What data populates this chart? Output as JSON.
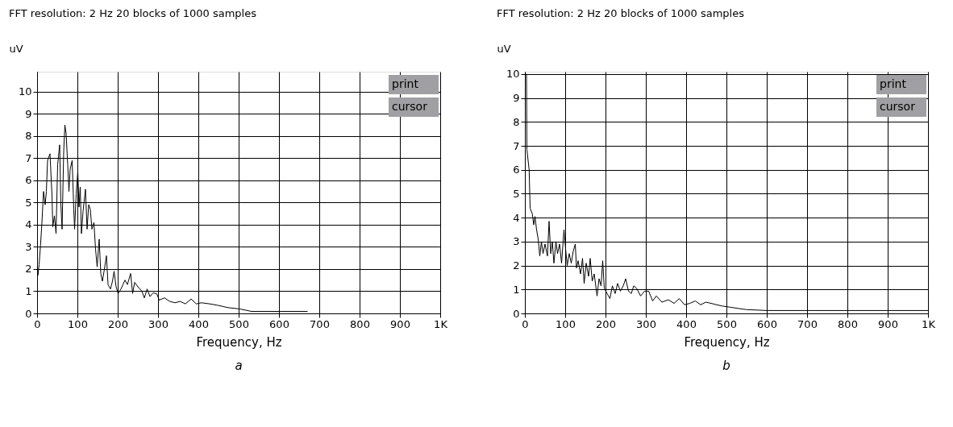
{
  "chart_data": [
    {
      "type": "line",
      "title": "FFT resolution: 2 Hz   20 blocks of 1000 samples",
      "xlabel": "Frequency, Hz",
      "ylabel": "uV",
      "annotations": [
        "print",
        "cursor",
        "a"
      ],
      "series": [
        {
          "color": "#000000",
          "x": [
            0,
            2,
            5,
            8.5,
            12,
            16,
            20,
            23,
            26,
            32,
            37,
            39,
            43,
            47,
            51,
            56,
            59,
            62,
            66,
            69,
            72,
            76,
            79,
            82,
            87,
            91,
            93,
            97,
            101,
            104,
            107,
            110,
            114,
            120,
            124,
            128,
            132,
            136,
            141,
            145,
            149,
            154,
            158,
            162,
            167,
            172,
            176,
            182,
            187,
            191,
            196,
            201,
            208,
            213,
            218,
            224,
            232,
            237,
            242,
            250,
            260,
            266,
            273,
            280,
            288,
            297,
            303,
            316,
            329,
            342,
            355,
            368,
            382,
            395,
            408,
            428,
            447,
            474,
            503,
            532,
            600,
            671
          ],
          "values": [
            2.56,
            1.72,
            2.2,
            3.07,
            4.1,
            5.5,
            4.9,
            5.5,
            6.9,
            7.2,
            5.3,
            3.9,
            4.4,
            3.6,
            6.7,
            7.6,
            4.9,
            3.8,
            7.3,
            8.5,
            8.1,
            6.7,
            5.5,
            6.5,
            6.9,
            4.7,
            3.8,
            5.4,
            6.4,
            4.8,
            5.7,
            3.6,
            4.6,
            5.6,
            3.8,
            4.9,
            4.7,
            3.8,
            4.1,
            2.9,
            2.1,
            3.35,
            1.8,
            1.45,
            2.0,
            2.6,
            1.3,
            1.1,
            1.45,
            1.9,
            1.2,
            0.9,
            1.1,
            1.3,
            1.5,
            1.3,
            1.8,
            0.9,
            1.4,
            1.2,
            1.0,
            0.7,
            1.1,
            0.76,
            0.93,
            0.88,
            0.6,
            0.7,
            0.54,
            0.48,
            0.54,
            0.43,
            0.65,
            0.43,
            0.48,
            0.43,
            0.37,
            0.26,
            0.2,
            0.09,
            0.09,
            0.09
          ]
        }
      ],
      "xlim": [
        0,
        1000
      ],
      "xticks": [
        0,
        100,
        200,
        300,
        400,
        500,
        600,
        700,
        800,
        900,
        {
          "value": 1000,
          "label": "1K"
        }
      ],
      "ylim": [
        0,
        10.9
      ],
      "yticks": [
        0,
        1,
        2,
        3,
        4,
        5,
        6,
        7,
        8,
        9,
        10
      ],
      "grid": true,
      "line_style": "solid"
    },
    {
      "type": "line",
      "title": "FFT resolution: 2 Hz   20 blocks of 1000 samples",
      "xlabel": "Frequency, Hz",
      "ylabel": "uV",
      "annotations": [
        "print",
        "cursor",
        "b"
      ],
      "series": [
        {
          "color": "#000000",
          "x": [
            1.3,
            4,
            5,
            10.6,
            13,
            18.5,
            22,
            25,
            29,
            33,
            37,
            41,
            45,
            50,
            56,
            60,
            64,
            68,
            72,
            77,
            81,
            86,
            91,
            97,
            101,
            105,
            110,
            115,
            120,
            125,
            128,
            132,
            138,
            143,
            147,
            152,
            158,
            162,
            167,
            172,
            179,
            184,
            189,
            193,
            197,
            204,
            211,
            217,
            224,
            230,
            237,
            244,
            250,
            257,
            264,
            270,
            277,
            287,
            297,
            307,
            317,
            326,
            340,
            356,
            370,
            383,
            396,
            409,
            423,
            436,
            449,
            462,
            476,
            489,
            509,
            528,
            549,
            600,
            700,
            800,
            900,
            1000
          ],
          "values": [
            10,
            10,
            6.85,
            6.0,
            4.4,
            4.15,
            3.7,
            4.05,
            3.5,
            3.1,
            2.4,
            3.0,
            2.5,
            2.9,
            2.4,
            3.85,
            2.5,
            3.0,
            2.1,
            3.0,
            2.5,
            2.9,
            2.1,
            3.5,
            2.7,
            2.0,
            2.5,
            2.1,
            2.6,
            2.9,
            1.9,
            2.2,
            1.65,
            2.3,
            1.25,
            2.1,
            1.55,
            2.3,
            1.35,
            1.65,
            0.73,
            1.45,
            1.15,
            2.2,
            1.05,
            0.83,
            0.62,
            1.15,
            0.83,
            1.25,
            0.93,
            1.15,
            1.45,
            0.93,
            0.83,
            1.15,
            1.05,
            0.73,
            0.93,
            0.93,
            0.52,
            0.73,
            0.47,
            0.57,
            0.42,
            0.62,
            0.36,
            0.42,
            0.52,
            0.36,
            0.47,
            0.42,
            0.36,
            0.31,
            0.26,
            0.21,
            0.16,
            0.12,
            0.12,
            0.12,
            0.12,
            0.12
          ]
        }
      ],
      "xlim": [
        0,
        1000
      ],
      "xticks": [
        0,
        100,
        200,
        300,
        400,
        500,
        600,
        700,
        800,
        900,
        {
          "value": 1000,
          "label": "1K"
        }
      ],
      "ylim": [
        0,
        10.1
      ],
      "yticks": [
        0,
        1,
        2,
        3,
        4,
        5,
        6,
        7,
        8,
        9,
        10
      ],
      "grid": true,
      "line_style": "solid"
    }
  ]
}
